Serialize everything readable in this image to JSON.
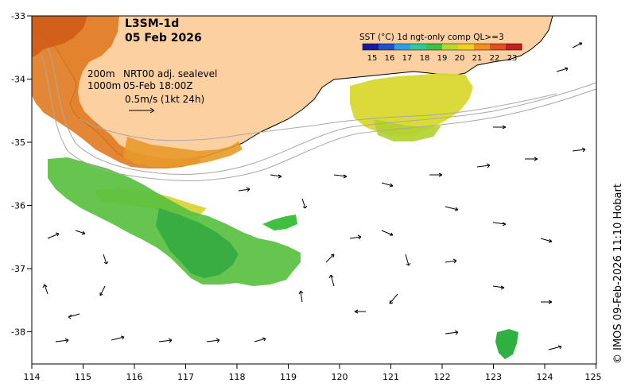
{
  "header": {
    "product": "L3SM-1d",
    "date": "05 Feb 2026"
  },
  "legend": {
    "title": "SST (°C) 1d ngt-only comp QL>=3",
    "ticks": [
      "15",
      "16",
      "17",
      "18",
      "19",
      "20",
      "21",
      "22",
      "23"
    ],
    "colors": [
      "#1a1aa0",
      "#2050d0",
      "#2ea0e0",
      "#30c8a0",
      "#40c040",
      "#b8d830",
      "#f0d020",
      "#f09020",
      "#e05020",
      "#c02020"
    ]
  },
  "annotation": {
    "contour_label_200": "200m",
    "contour_label_1000": "1000m",
    "source": "NRT00 adj. sealevel",
    "valid_time": "05-Feb 18:00Z",
    "scale_text": "0.5m/s (1kt 24h)"
  },
  "axes": {
    "lon_ticks": [
      "114",
      "115",
      "116",
      "117",
      "118",
      "119",
      "120",
      "121",
      "122",
      "123",
      "124",
      "125"
    ],
    "lat_ticks": [
      "-33",
      "-34",
      "-35",
      "-36",
      "-37",
      "-38"
    ]
  },
  "credit": "© IMOS 09-Feb-2026 11:10 Hobart",
  "colors": {
    "land": "#fcd0a0",
    "coast": "#000000",
    "sst_warm": "#e07a20",
    "sst_mid": "#e8c030",
    "sst_yellow": "#d8e030",
    "sst_green": "#50c040",
    "bathy": "#a8a8a8"
  }
}
